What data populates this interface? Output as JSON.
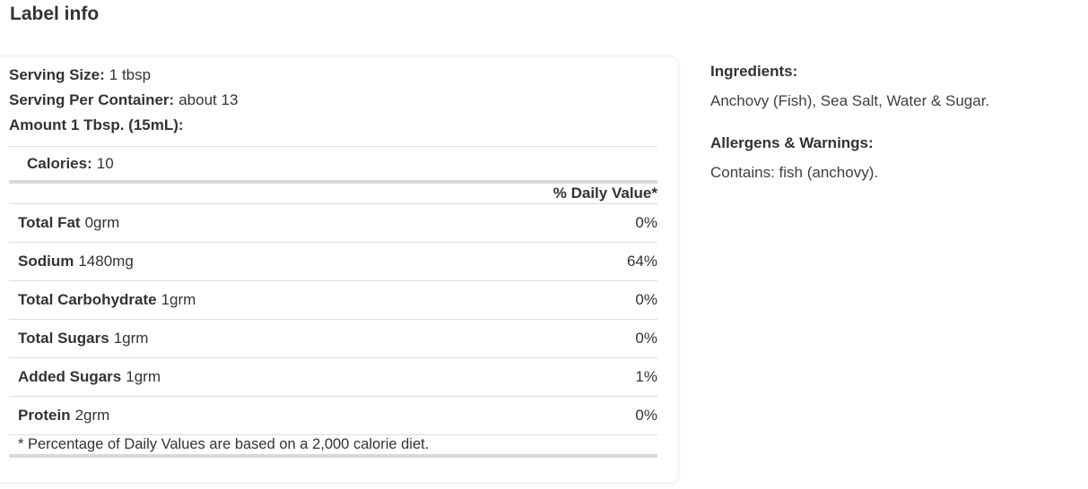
{
  "page": {
    "title": "Label info"
  },
  "colors": {
    "text": "#333333",
    "thin_rule": "#dcdcdc",
    "thick_rule": "#d9d9d9",
    "panel_border": "#ededed",
    "background": "#ffffff"
  },
  "nutrition_panel": {
    "serving_rows": [
      {
        "label": "Serving Size:",
        "value": "1 tbsp"
      },
      {
        "label": "Serving Per Container:",
        "value": "about 13"
      },
      {
        "label": "Amount 1 Tbsp. (15mL):",
        "value": ""
      }
    ],
    "calories": {
      "label": "Calories:",
      "value": "10"
    },
    "daily_value_header": "% Daily Value*",
    "nutrients": [
      {
        "name": "Total Fat",
        "amount": "0grm",
        "daily_value": "0%"
      },
      {
        "name": "Sodium",
        "amount": "1480mg",
        "daily_value": "64%"
      },
      {
        "name": "Total Carbohydrate",
        "amount": "1grm",
        "daily_value": "0%"
      },
      {
        "name": "Total Sugars",
        "amount": "1grm",
        "daily_value": "0%"
      },
      {
        "name": "Added Sugars",
        "amount": "1grm",
        "daily_value": "1%"
      },
      {
        "name": "Protein",
        "amount": "2grm",
        "daily_value": "0%"
      }
    ],
    "footnote": "* Percentage of Daily Values are based on a 2,000 calorie diet."
  },
  "details": {
    "ingredients": {
      "heading": "Ingredients:",
      "text": "Anchovy (Fish), Sea Salt, Water & Sugar."
    },
    "allergens": {
      "heading": "Allergens & Warnings:",
      "text": "Contains: fish (anchovy)."
    }
  }
}
